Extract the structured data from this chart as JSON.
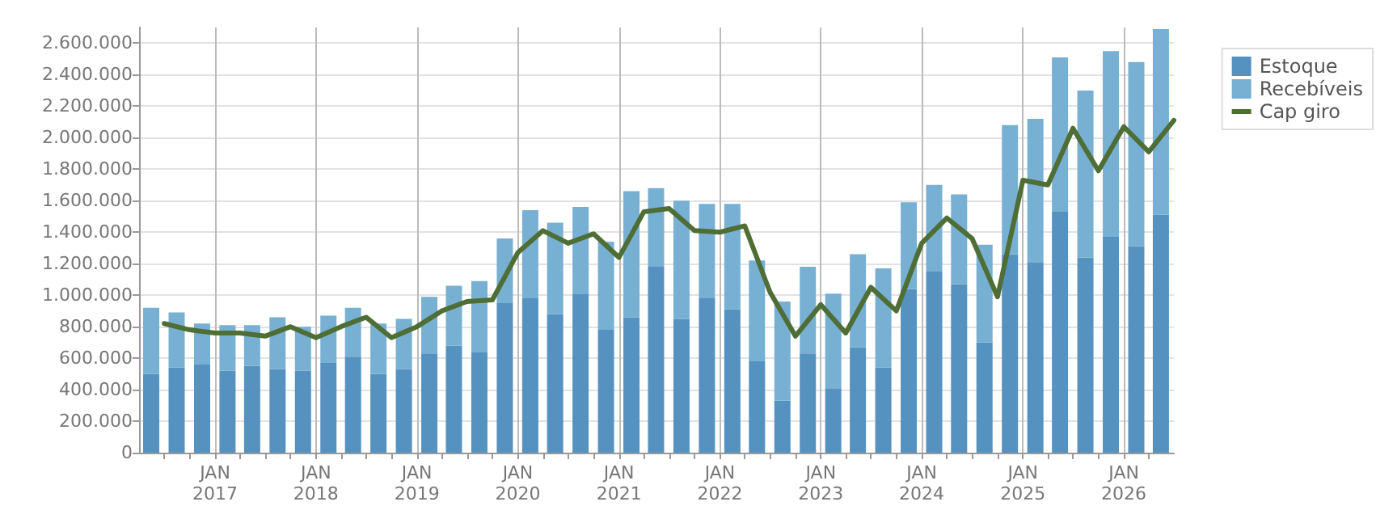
{
  "chart_data": {
    "type": "bar",
    "stacked": true,
    "x": [
      "2016-05-15",
      "2016-08-15",
      "2016-11-15",
      "2017-02-15",
      "2017-05-15",
      "2017-08-15",
      "2017-11-15",
      "2018-02-15",
      "2018-05-15",
      "2018-08-15",
      "2018-11-15",
      "2019-02-15",
      "2019-05-15",
      "2019-08-15",
      "2019-11-15",
      "2020-02-15",
      "2020-05-15",
      "2020-08-15",
      "2020-11-15",
      "2021-02-15",
      "2021-05-15",
      "2021-08-15",
      "2021-11-15",
      "2022-02-15",
      "2022-05-15",
      "2022-08-15",
      "2022-11-15",
      "2023-02-15",
      "2023-05-15",
      "2023-08-15",
      "2023-11-15",
      "2024-02-15",
      "2024-05-15",
      "2024-08-15",
      "2024-11-15",
      "2025-02-15",
      "2025-05-15",
      "2025-08-15",
      "2025-11-15",
      "2026-02-15",
      "2026-05-15"
    ],
    "series": [
      {
        "name": "Estoque",
        "color": "#5592c0",
        "values": [
          500000,
          540000,
          560000,
          520000,
          550000,
          530000,
          520000,
          570000,
          610000,
          500000,
          530000,
          630000,
          680000,
          640000,
          950000,
          980000,
          880000,
          1010000,
          780000,
          860000,
          1180000,
          850000,
          980000,
          910000,
          580000,
          330000,
          630000,
          410000,
          670000,
          540000,
          1040000,
          1150000,
          1070000,
          700000,
          1260000,
          1210000,
          1530000,
          1240000,
          1370000,
          1310000,
          1510000
        ]
      },
      {
        "name": "Recebíveis",
        "color": "#77b0d3",
        "values": [
          420000,
          350000,
          260000,
          290000,
          260000,
          330000,
          280000,
          300000,
          310000,
          320000,
          320000,
          360000,
          380000,
          450000,
          410000,
          560000,
          580000,
          550000,
          560000,
          800000,
          500000,
          750000,
          600000,
          670000,
          640000,
          630000,
          550000,
          600000,
          590000,
          630000,
          550000,
          550000,
          570000,
          620000,
          820000,
          910000,
          980000,
          1060000,
          1180000,
          1170000,
          1180000
        ]
      },
      {
        "name": "Cap giro",
        "type": "line",
        "color": "#4e6e35",
        "marker": "none",
        "line_style": "solid",
        "x": [
          "2016-07",
          "2016-10",
          "2017-01",
          "2017-04",
          "2017-07",
          "2017-10",
          "2018-01",
          "2018-04",
          "2018-07",
          "2018-10",
          "2019-01",
          "2019-04",
          "2019-07",
          "2019-10",
          "2020-01",
          "2020-04",
          "2020-07",
          "2020-10",
          "2021-01",
          "2021-04",
          "2021-07",
          "2021-10",
          "2022-01",
          "2022-04",
          "2022-07",
          "2022-10",
          "2023-01",
          "2023-04",
          "2023-07",
          "2023-10",
          "2024-01",
          "2024-04",
          "2024-07",
          "2024-10",
          "2025-01",
          "2025-04",
          "2025-07",
          "2025-10",
          "2026-01",
          "2026-04",
          "2026-07"
        ],
        "values": [
          820000,
          780000,
          760000,
          760000,
          740000,
          800000,
          730000,
          800000,
          860000,
          730000,
          800000,
          900000,
          960000,
          970000,
          1270000,
          1410000,
          1330000,
          1390000,
          1240000,
          1530000,
          1550000,
          1410000,
          1400000,
          1440000,
          1020000,
          740000,
          940000,
          760000,
          1050000,
          900000,
          1330000,
          1490000,
          1360000,
          990000,
          1730000,
          1700000,
          2060000,
          1790000,
          2070000,
          1910000,
          2110000
        ]
      }
    ],
    "xlim": [
      "2016-04",
      "2026-07"
    ],
    "xticks": [
      {
        "value": "2016-07",
        "label": null
      },
      {
        "value": "2016-10",
        "label": null
      },
      {
        "value": "2017-01",
        "label": "JAN\n2017"
      },
      {
        "value": "2017-04",
        "label": null
      },
      {
        "value": "2017-07",
        "label": null
      },
      {
        "value": "2017-10",
        "label": null
      },
      {
        "value": "2018-01",
        "label": "JAN\n2018"
      },
      {
        "value": "2018-04",
        "label": null
      },
      {
        "value": "2018-07",
        "label": null
      },
      {
        "value": "2018-10",
        "label": null
      },
      {
        "value": "2019-01",
        "label": "JAN\n2019"
      },
      {
        "value": "2019-04",
        "label": null
      },
      {
        "value": "2019-07",
        "label": null
      },
      {
        "value": "2019-10",
        "label": null
      },
      {
        "value": "2020-01",
        "label": "JAN\n2020"
      },
      {
        "value": "2020-04",
        "label": null
      },
      {
        "value": "2020-07",
        "label": null
      },
      {
        "value": "2020-10",
        "label": null
      },
      {
        "value": "2021-01",
        "label": "JAN\n2021"
      },
      {
        "value": "2021-04",
        "label": null
      },
      {
        "value": "2021-07",
        "label": null
      },
      {
        "value": "2021-10",
        "label": null
      },
      {
        "value": "2022-01",
        "label": "JAN\n2022"
      },
      {
        "value": "2022-04",
        "label": null
      },
      {
        "value": "2022-07",
        "label": null
      },
      {
        "value": "2022-10",
        "label": null
      },
      {
        "value": "2023-01",
        "label": "JAN\n2023"
      },
      {
        "value": "2023-04",
        "label": null
      },
      {
        "value": "2023-07",
        "label": null
      },
      {
        "value": "2023-10",
        "label": null
      },
      {
        "value": "2024-01",
        "label": "JAN\n2024"
      },
      {
        "value": "2024-04",
        "label": null
      },
      {
        "value": "2024-07",
        "label": null
      },
      {
        "value": "2024-10",
        "label": null
      },
      {
        "value": "2025-01",
        "label": "JAN\n2025"
      },
      {
        "value": "2025-04",
        "label": null
      },
      {
        "value": "2025-07",
        "label": null
      },
      {
        "value": "2025-10",
        "label": null
      },
      {
        "value": "2026-01",
        "label": "JAN\n2026"
      },
      {
        "value": "2026-04",
        "label": null
      }
    ],
    "ylim": [
      0,
      2700000
    ],
    "yticks": [
      {
        "value": 0,
        "label": "0"
      },
      {
        "value": 200000,
        "label": "200.000"
      },
      {
        "value": 400000,
        "label": "400.000"
      },
      {
        "value": 600000,
        "label": "600.000"
      },
      {
        "value": 800000,
        "label": "800.000"
      },
      {
        "value": 1000000,
        "label": "1.000.000"
      },
      {
        "value": 1200000,
        "label": "1.200.000"
      },
      {
        "value": 1400000,
        "label": "1.400.000"
      },
      {
        "value": 1600000,
        "label": "1.600.000"
      },
      {
        "value": 1800000,
        "label": "1.800.000"
      },
      {
        "value": 2000000,
        "label": "2.000.000"
      },
      {
        "value": 2200000,
        "label": "2.200.000"
      },
      {
        "value": 2400000,
        "label": "2.400.000"
      },
      {
        "value": 2600000,
        "label": "2.600.000"
      }
    ],
    "grid": true,
    "legend": "top right"
  }
}
